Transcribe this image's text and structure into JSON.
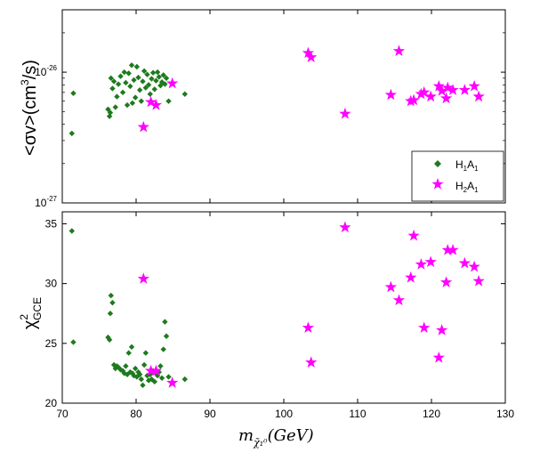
{
  "colors": {
    "green": "#1e7a1e",
    "magenta": "#ff00ff",
    "axis": "#000000",
    "background": "#ffffff"
  },
  "chart_data": [
    {
      "type": "scatter",
      "panel": "top",
      "title": "",
      "ylabel": {
        "base": "<σv>(cm",
        "sup": "3",
        "tail": "/s)"
      },
      "yscale": "log",
      "ylim": [
        1e-27,
        3e-26
      ],
      "xlim": [
        70,
        130
      ],
      "yticks": [
        {
          "value": 1e-27,
          "base": "10",
          "exp": "-27"
        },
        {
          "value": 1e-26,
          "base": "10",
          "exp": "-26"
        }
      ],
      "legend": {
        "position": "bottom-right",
        "entries": [
          {
            "name": "H₁A₁",
            "marker": "diamond",
            "color": "#1e7a1e"
          },
          {
            "name": "H₂A₁",
            "marker": "star",
            "color": "#ff00ff"
          }
        ]
      },
      "series": [
        {
          "name": "H₁A₁",
          "marker": "diamond",
          "color": "#1e7a1e",
          "points": [
            [
              71.3,
              3.4e-27
            ],
            [
              71.5,
              6.9e-27
            ],
            [
              76.2,
              5.2e-27
            ],
            [
              76.4,
              4.6e-27
            ],
            [
              76.5,
              4.9e-27
            ],
            [
              76.6,
              9e-27
            ],
            [
              76.8,
              7.5e-27
            ],
            [
              77.0,
              8.5e-27
            ],
            [
              77.2,
              5.4e-27
            ],
            [
              77.4,
              6.5e-27
            ],
            [
              77.6,
              8.1e-27
            ],
            [
              77.9,
              9.3e-27
            ],
            [
              78.2,
              7e-27
            ],
            [
              78.4,
              1e-26
            ],
            [
              78.6,
              8.3e-27
            ],
            [
              78.8,
              5.6e-27
            ],
            [
              79.0,
              9.8e-27
            ],
            [
              79.2,
              7.8e-27
            ],
            [
              79.4,
              1.13e-26
            ],
            [
              79.5,
              5.8e-27
            ],
            [
              79.7,
              8.7e-27
            ],
            [
              79.9,
              6.4e-27
            ],
            [
              80.1,
              1.1e-26
            ],
            [
              80.3,
              9.1e-27
            ],
            [
              80.5,
              7.3e-27
            ],
            [
              80.7,
              6e-27
            ],
            [
              80.9,
              8.5e-27
            ],
            [
              81.1,
              1.02e-26
            ],
            [
              81.3,
              7.6e-27
            ],
            [
              81.5,
              9.6e-27
            ],
            [
              81.7,
              8e-27
            ],
            [
              81.9,
              6.8e-27
            ],
            [
              82.1,
              8.9e-27
            ],
            [
              82.3,
              9.9e-27
            ],
            [
              82.5,
              7.4e-27
            ],
            [
              82.7,
              8.6e-27
            ],
            [
              82.9,
              1e-26
            ],
            [
              83.1,
              9.2e-27
            ],
            [
              83.3,
              7.9e-27
            ],
            [
              83.5,
              8.4e-27
            ],
            [
              83.7,
              9.5e-27
            ],
            [
              83.9,
              8.1e-27
            ],
            [
              84.1,
              9e-27
            ],
            [
              84.4,
              6e-27
            ],
            [
              86.6,
              6.8e-27
            ]
          ]
        },
        {
          "name": "H₂A₁",
          "marker": "star",
          "color": "#ff00ff",
          "points": [
            [
              81.0,
              3.8e-27
            ],
            [
              82.0,
              5.9e-27
            ],
            [
              82.7,
              5.6e-27
            ],
            [
              84.9,
              8.2e-27
            ],
            [
              103.3,
              1.4e-26
            ],
            [
              103.7,
              1.3e-26
            ],
            [
              108.3,
              4.8e-27
            ],
            [
              114.5,
              6.7e-27
            ],
            [
              115.6,
              1.45e-26
            ],
            [
              117.2,
              6e-27
            ],
            [
              117.6,
              6.1e-27
            ],
            [
              118.6,
              6.8e-27
            ],
            [
              119.0,
              7e-27
            ],
            [
              119.9,
              6.5e-27
            ],
            [
              121.0,
              7.8e-27
            ],
            [
              121.4,
              7.2e-27
            ],
            [
              122.0,
              6.3e-27
            ],
            [
              122.2,
              7.6e-27
            ],
            [
              122.9,
              7.3e-27
            ],
            [
              124.5,
              7.3e-27
            ],
            [
              125.8,
              7.8e-27
            ],
            [
              126.4,
              6.5e-27
            ]
          ]
        }
      ]
    },
    {
      "type": "scatter",
      "panel": "bottom",
      "title": "",
      "ylabel": {
        "base": "χ",
        "sup": "2",
        "sub": "GCE"
      },
      "xlabel": {
        "text": "m",
        "sub": "χ̃₁⁰",
        "tail": "(GeV)"
      },
      "yscale": "linear",
      "ylim": [
        20,
        36
      ],
      "xlim": [
        70,
        130
      ],
      "yticks": [
        20,
        25,
        30,
        35
      ],
      "xticks": [
        70,
        80,
        90,
        100,
        110,
        120,
        130
      ],
      "series": [
        {
          "name": "H₁A₁",
          "marker": "diamond",
          "color": "#1e7a1e",
          "points": [
            [
              71.3,
              34.4
            ],
            [
              71.5,
              25.1
            ],
            [
              76.2,
              25.5
            ],
            [
              76.4,
              25.3
            ],
            [
              76.5,
              27.5
            ],
            [
              76.6,
              29.0
            ],
            [
              76.8,
              28.4
            ],
            [
              77.0,
              23.2
            ],
            [
              77.2,
              22.9
            ],
            [
              77.4,
              23.1
            ],
            [
              77.6,
              23.0
            ],
            [
              77.9,
              22.8
            ],
            [
              78.2,
              22.7
            ],
            [
              78.4,
              22.5
            ],
            [
              78.6,
              23.1
            ],
            [
              78.8,
              22.4
            ],
            [
              79.0,
              24.2
            ],
            [
              79.2,
              22.6
            ],
            [
              79.4,
              24.7
            ],
            [
              79.5,
              22.5
            ],
            [
              79.7,
              22.3
            ],
            [
              79.9,
              22.9
            ],
            [
              80.1,
              22.2
            ],
            [
              80.3,
              22.6
            ],
            [
              80.5,
              22.4
            ],
            [
              80.7,
              22.0
            ],
            [
              80.9,
              21.5
            ],
            [
              81.1,
              23.2
            ],
            [
              81.3,
              24.2
            ],
            [
              81.5,
              22.3
            ],
            [
              81.7,
              21.9
            ],
            [
              81.9,
              22.4
            ],
            [
              82.1,
              22.0
            ],
            [
              82.3,
              22.7
            ],
            [
              82.5,
              21.8
            ],
            [
              82.7,
              22.5
            ],
            [
              82.9,
              22.3
            ],
            [
              83.1,
              22.6
            ],
            [
              83.3,
              23.1
            ],
            [
              83.5,
              22.1
            ],
            [
              83.7,
              24.5
            ],
            [
              83.9,
              26.8
            ],
            [
              84.1,
              25.6
            ],
            [
              84.4,
              22.2
            ],
            [
              86.6,
              22.0
            ]
          ]
        },
        {
          "name": "H₂A₁",
          "marker": "star",
          "color": "#ff00ff",
          "points": [
            [
              81.0,
              30.4
            ],
            [
              82.0,
              22.7
            ],
            [
              82.7,
              22.7
            ],
            [
              84.9,
              21.7
            ],
            [
              103.3,
              26.3
            ],
            [
              103.7,
              23.4
            ],
            [
              108.3,
              34.7
            ],
            [
              114.5,
              29.7
            ],
            [
              115.6,
              28.6
            ],
            [
              117.2,
              30.5
            ],
            [
              117.6,
              34.0
            ],
            [
              118.6,
              31.6
            ],
            [
              119.0,
              26.3
            ],
            [
              119.9,
              31.8
            ],
            [
              121.0,
              23.8
            ],
            [
              121.4,
              26.1
            ],
            [
              122.0,
              30.1
            ],
            [
              122.2,
              32.8
            ],
            [
              122.9,
              32.8
            ],
            [
              124.5,
              31.7
            ],
            [
              125.8,
              31.4
            ],
            [
              126.4,
              30.2
            ]
          ]
        }
      ]
    }
  ]
}
